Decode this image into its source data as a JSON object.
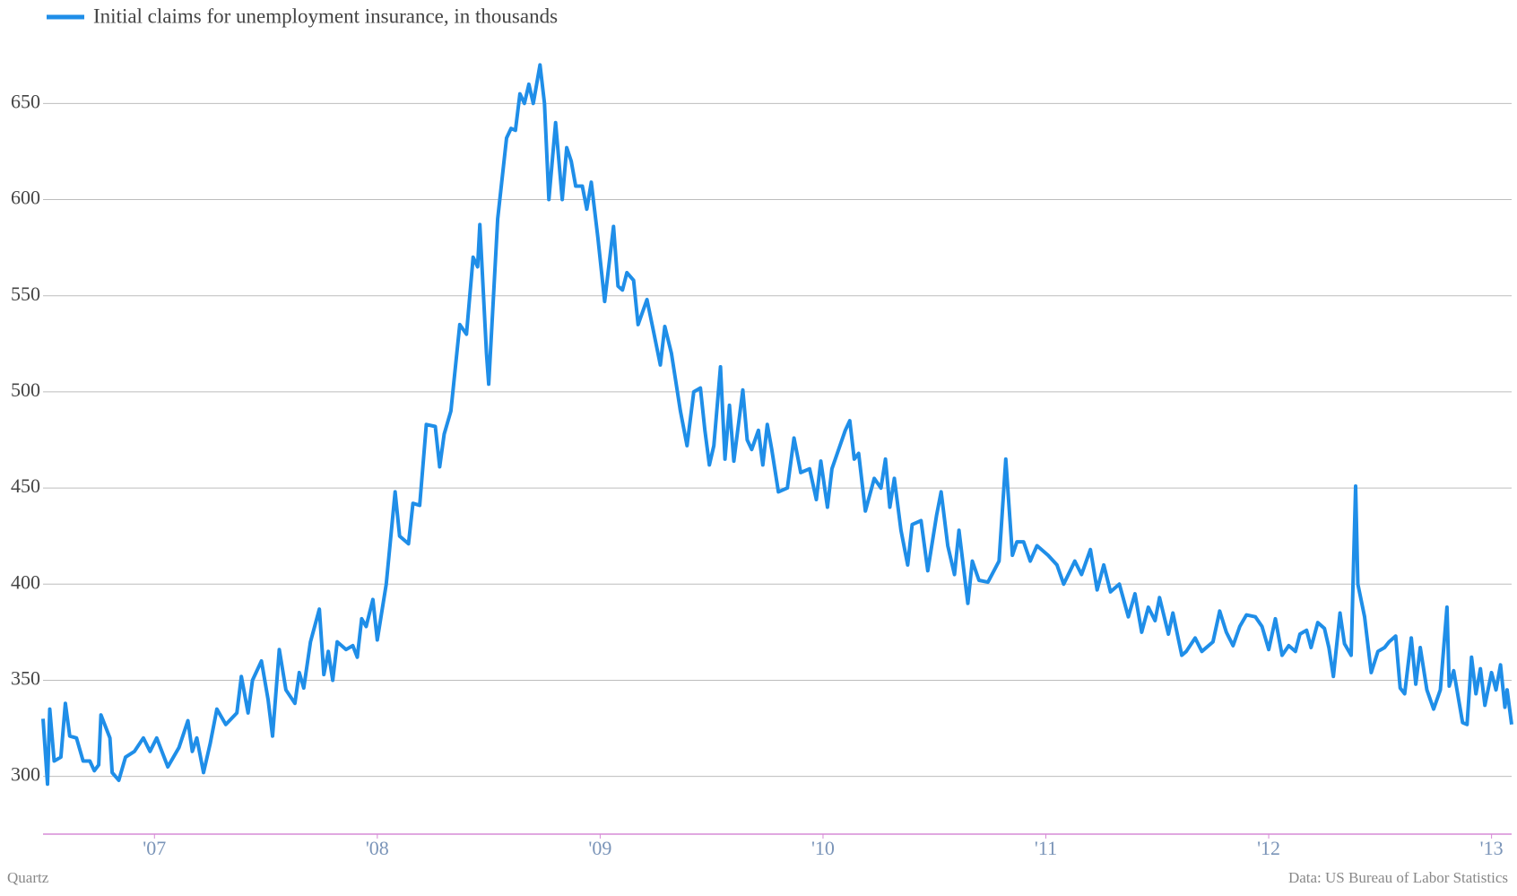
{
  "chart_data": {
    "type": "line",
    "legend_position": "top-left",
    "source": "Data: US Bureau of Labor Statistics",
    "credit": "Quartz",
    "grid": true,
    "xlim": [
      2006.5,
      2013.09
    ],
    "xticks": [
      {
        "value": 2007,
        "label": "'07"
      },
      {
        "value": 2008,
        "label": "'08"
      },
      {
        "value": 2009,
        "label": "'09"
      },
      {
        "value": 2010,
        "label": "'10"
      },
      {
        "value": 2011,
        "label": "'11"
      },
      {
        "value": 2012,
        "label": "'12"
      },
      {
        "value": 2013,
        "label": "'13"
      }
    ],
    "ylim": [
      270,
      680
    ],
    "yticks": [
      300,
      350,
      400,
      450,
      500,
      550,
      600,
      650
    ],
    "x": [
      2006.5,
      2006.52,
      2006.53,
      2006.55,
      2006.58,
      2006.6,
      2006.62,
      2006.65,
      2006.68,
      2006.71,
      2006.73,
      2006.75,
      2006.76,
      2006.8,
      2006.81,
      2006.84,
      2006.87,
      2006.91,
      2006.95,
      2006.98,
      2007.01,
      2007.06,
      2007.11,
      2007.15,
      2007.17,
      2007.19,
      2007.22,
      2007.25,
      2007.28,
      2007.32,
      2007.37,
      2007.39,
      2007.42,
      2007.44,
      2007.48,
      2007.51,
      2007.53,
      2007.56,
      2007.59,
      2007.63,
      2007.65,
      2007.67,
      2007.7,
      2007.74,
      2007.76,
      2007.78,
      2007.8,
      2007.82,
      2007.86,
      2007.89,
      2007.91,
      2007.93,
      2007.95,
      2007.98,
      2008.0,
      2008.04,
      2008.08,
      2008.1,
      2008.14,
      2008.16,
      2008.19,
      2008.22,
      2008.26,
      2008.28,
      2008.3,
      2008.33,
      2008.37,
      2008.4,
      2008.43,
      2008.45,
      2008.46,
      2008.49,
      2008.5,
      2008.54,
      2008.58,
      2008.6,
      2008.62,
      2008.64,
      2008.66,
      2008.68,
      2008.7,
      2008.73,
      2008.75,
      2008.77,
      2008.8,
      2008.83,
      2008.85,
      2008.87,
      2008.89,
      2008.92,
      2008.94,
      2008.96,
      2008.99,
      2009.02,
      2009.06,
      2009.08,
      2009.1,
      2009.12,
      2009.15,
      2009.17,
      2009.21,
      2009.24,
      2009.27,
      2009.29,
      2009.32,
      2009.36,
      2009.39,
      2009.42,
      2009.45,
      2009.47,
      2009.49,
      2009.51,
      2009.54,
      2009.56,
      2009.58,
      2009.6,
      2009.64,
      2009.66,
      2009.68,
      2009.71,
      2009.73,
      2009.75,
      2009.77,
      2009.8,
      2009.84,
      2009.87,
      2009.9,
      2009.94,
      2009.97,
      2009.99,
      2010.02,
      2010.04,
      2010.1,
      2010.12,
      2010.14,
      2010.16,
      2010.19,
      2010.23,
      2010.26,
      2010.28,
      2010.3,
      2010.32,
      2010.35,
      2010.38,
      2010.4,
      2010.44,
      2010.47,
      2010.51,
      2010.53,
      2010.56,
      2010.59,
      2010.61,
      2010.65,
      2010.67,
      2010.7,
      2010.74,
      2010.79,
      2010.82,
      2010.85,
      2010.87,
      2010.9,
      2010.93,
      2010.96,
      2011.01,
      2011.05,
      2011.08,
      2011.13,
      2011.16,
      2011.2,
      2011.23,
      2011.26,
      2011.29,
      2011.33,
      2011.37,
      2011.4,
      2011.43,
      2011.46,
      2011.49,
      2011.51,
      2011.55,
      2011.57,
      2011.61,
      2011.63,
      2011.67,
      2011.7,
      2011.73,
      2011.75,
      2011.78,
      2011.81,
      2011.84,
      2011.87,
      2011.9,
      2011.94,
      2011.97,
      2012.0,
      2012.03,
      2012.06,
      2012.09,
      2012.12,
      2012.14,
      2012.17,
      2012.19,
      2012.22,
      2012.25,
      2012.27,
      2012.29,
      2012.32,
      2012.34,
      2012.37,
      2012.39,
      2012.4,
      2012.43,
      2012.46,
      2012.49,
      2012.52,
      2012.54,
      2012.57,
      2012.59,
      2012.61,
      2012.64,
      2012.66,
      2012.68,
      2012.71,
      2012.74,
      2012.77,
      2012.8,
      2012.81,
      2012.83,
      2012.87,
      2012.89,
      2012.91,
      2012.93,
      2012.95,
      2012.97,
      2013.0,
      2013.02,
      2013.04,
      2013.06,
      2013.07,
      2013.09
    ],
    "series": [
      {
        "name": "Initial claims for unemployment insurance, in thousands",
        "color": "#1f8ee8",
        "values": [
          330,
          296,
          335,
          308,
          310,
          338,
          321,
          320,
          308,
          308,
          303,
          306,
          332,
          320,
          302,
          298,
          310,
          313,
          320,
          313,
          320,
          305,
          315,
          329,
          313,
          320,
          302,
          317,
          335,
          327,
          333,
          352,
          333,
          350,
          360,
          340,
          321,
          366,
          345,
          338,
          354,
          346,
          370,
          387,
          353,
          365,
          350,
          370,
          366,
          368,
          362,
          382,
          378,
          392,
          371,
          400,
          448,
          425,
          421,
          442,
          441,
          483,
          482,
          461,
          478,
          490,
          535,
          530,
          570,
          565,
          587,
          520,
          504,
          590,
          632,
          637,
          636,
          655,
          650,
          660,
          650,
          670,
          650,
          600,
          640,
          600,
          627,
          620,
          607,
          607,
          595,
          609,
          580,
          547,
          586,
          555,
          553,
          562,
          558,
          535,
          548,
          531,
          514,
          534,
          520,
          490,
          472,
          500,
          502,
          480,
          462,
          472,
          513,
          465,
          493,
          464,
          501,
          475,
          470,
          480,
          462,
          483,
          470,
          448,
          450,
          476,
          458,
          460,
          444,
          464,
          440,
          460,
          480,
          485,
          465,
          468,
          438,
          455,
          450,
          465,
          440,
          455,
          428,
          410,
          431,
          433,
          407,
          436,
          448,
          420,
          405,
          428,
          390,
          412,
          402,
          401,
          412,
          465,
          415,
          422,
          422,
          412,
          420,
          415,
          410,
          400,
          412,
          405,
          418,
          397,
          410,
          396,
          400,
          383,
          395,
          375,
          388,
          381,
          393,
          374,
          385,
          363,
          365,
          372,
          365,
          368,
          370,
          386,
          375,
          368,
          378,
          384,
          383,
          378,
          366,
          382,
          363,
          368,
          365,
          374,
          376,
          367,
          380,
          377,
          367,
          352,
          385,
          369,
          363,
          451,
          400,
          383,
          354,
          365,
          367,
          370,
          373,
          346,
          343,
          372,
          348,
          367,
          345,
          335,
          345,
          388,
          347,
          355,
          328,
          327,
          362,
          343,
          356,
          337,
          354,
          345,
          358,
          336,
          345,
          327
        ]
      }
    ]
  }
}
